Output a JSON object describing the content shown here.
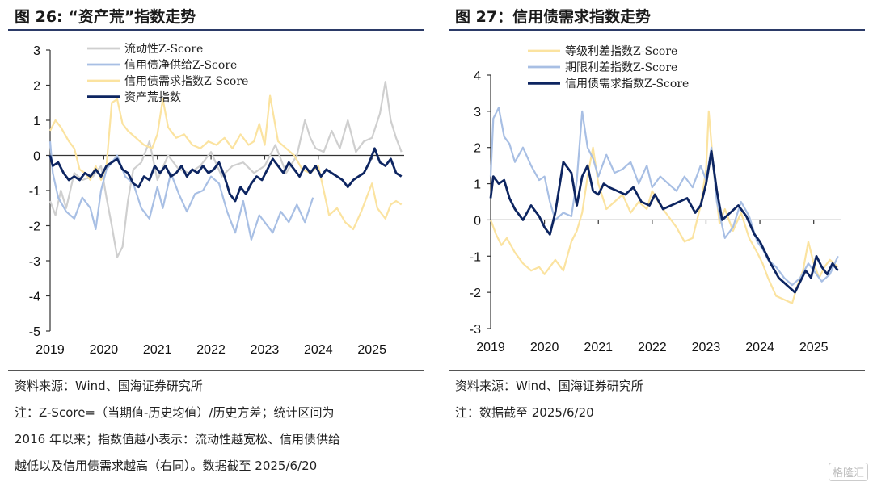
{
  "left": {
    "title": "图 26: “资产荒”指数走势",
    "source": "资料来源：Wind、国海证券研究所",
    "notes": [
      "注：Z-Score=（当期值-历史均值）/历史方差；统计区间为",
      "2016 年以来；指数值越小表示：流动性越宽松、信用债供给",
      "越低以及信用债需求越高（右同）。数据截至 2025/6/20"
    ]
  },
  "right": {
    "title": "图 27：信用债需求指数走势",
    "source": "资料来源：Wind、国海证券研究所",
    "notes": [
      "注：数据截至 2025/6/20"
    ]
  },
  "watermark": "格隆汇",
  "colors": {
    "axis": "#333333",
    "rule": "#2b3a67"
  },
  "chart_data": [
    {
      "type": "line",
      "title": "",
      "x_ticks": [
        "2019",
        "2020",
        "2021",
        "2022",
        "2023",
        "2024",
        "2025"
      ],
      "xlim": [
        2019.0,
        2025.6
      ],
      "ylim": [
        -5,
        3
      ],
      "y_ticks": [
        3,
        2,
        1,
        0,
        -1,
        -2,
        -3,
        -4,
        -5
      ],
      "grid": false,
      "legend": "top-left",
      "series": [
        {
          "name": "流动性Z-Score",
          "color": "#cfcfcf",
          "width": 2.2,
          "x": [
            2019.0,
            2019.1,
            2019.2,
            2019.3,
            2019.45,
            2019.6,
            2019.8,
            2019.95,
            2020.05,
            2020.15,
            2020.25,
            2020.35,
            2020.45,
            2020.55,
            2020.7,
            2020.85,
            2021.0,
            2021.2,
            2021.4,
            2021.6,
            2021.8,
            2022.0,
            2022.2,
            2022.4,
            2022.6,
            2022.8,
            2023.0,
            2023.2,
            2023.4,
            2023.6,
            2023.75,
            2023.85,
            2023.95,
            2024.1,
            2024.25,
            2024.4,
            2024.55,
            2024.7,
            2024.85,
            2025.0,
            2025.15,
            2025.25,
            2025.35,
            2025.45,
            2025.55
          ],
          "y": [
            -1.3,
            -1.7,
            -1.0,
            -1.5,
            -0.5,
            -0.7,
            -0.6,
            -0.3,
            -1.2,
            -2.0,
            -2.9,
            -2.6,
            -1.3,
            -0.4,
            -0.2,
            0.4,
            -0.7,
            0.0,
            -0.4,
            -0.5,
            -0.3,
            0.1,
            -0.6,
            -0.3,
            -0.2,
            -0.5,
            -0.3,
            0.3,
            -0.5,
            0.0,
            1.0,
            0.5,
            0.2,
            0.1,
            0.7,
            0.2,
            1.0,
            0.1,
            0.4,
            0.5,
            1.2,
            2.1,
            1.0,
            0.5,
            0.1
          ]
        },
        {
          "name": "信用债净供给Z-Score",
          "color": "#a8bfe4",
          "width": 2.2,
          "x": [
            2019.0,
            2019.05,
            2019.15,
            2019.3,
            2019.45,
            2019.6,
            2019.75,
            2019.85,
            2019.95,
            2020.05,
            2020.15,
            2020.25,
            2020.4,
            2020.55,
            2020.7,
            2020.85,
            2021.0,
            2021.1,
            2021.25,
            2021.4,
            2021.55,
            2021.7,
            2021.85,
            2022.0,
            2022.15,
            2022.3,
            2022.45,
            2022.6,
            2022.75,
            2022.9,
            2023.0,
            2023.15,
            2023.3,
            2023.45,
            2023.6,
            2023.75,
            2023.9
          ],
          "y": [
            0.4,
            -0.5,
            -1.2,
            -1.6,
            -1.8,
            -1.2,
            -1.5,
            -2.1,
            -1.0,
            -0.4,
            -0.2,
            0.0,
            -0.6,
            -0.8,
            -1.5,
            -1.8,
            -0.9,
            -1.5,
            -0.5,
            -1.1,
            -1.6,
            -1.1,
            -1.0,
            -0.6,
            -0.8,
            -1.6,
            -2.2,
            -1.3,
            -2.4,
            -1.7,
            -1.9,
            -2.2,
            -1.6,
            -1.9,
            -1.4,
            -1.9,
            -1.2
          ]
        },
        {
          "name": "信用债需求指数Z-Score",
          "color": "#fbe3a0",
          "width": 2.2,
          "x": [
            2019.0,
            2019.1,
            2019.2,
            2019.35,
            2019.45,
            2019.55,
            2019.65,
            2019.75,
            2019.85,
            2019.95,
            2020.05,
            2020.15,
            2020.25,
            2020.35,
            2020.45,
            2020.6,
            2020.75,
            2020.9,
            2021.0,
            2021.1,
            2021.2,
            2021.35,
            2021.5,
            2021.65,
            2021.8,
            2021.95,
            2022.1,
            2022.25,
            2022.4,
            2022.55,
            2022.7,
            2022.8,
            2022.9,
            2023.0,
            2023.1,
            2023.25,
            2023.4,
            2023.55,
            2023.7,
            2023.85,
            2024.0,
            2024.1,
            2024.2,
            2024.35,
            2024.5,
            2024.65,
            2024.8,
            2024.9,
            2025.0,
            2025.1,
            2025.25,
            2025.35,
            2025.45,
            2025.55
          ],
          "y": [
            0.7,
            1.0,
            0.8,
            0.4,
            0.2,
            -0.4,
            -0.5,
            -0.7,
            -0.3,
            -0.7,
            -0.3,
            1.5,
            1.6,
            0.9,
            0.7,
            0.5,
            0.3,
            0.2,
            0.6,
            1.6,
            0.8,
            0.5,
            0.6,
            0.3,
            0.2,
            0.4,
            0.3,
            0.5,
            0.2,
            0.6,
            0.3,
            0.4,
            0.9,
            0.3,
            1.7,
            0.4,
            0.2,
            0.0,
            -0.4,
            -0.5,
            -0.3,
            -1.0,
            -1.7,
            -1.5,
            -1.9,
            -2.1,
            -1.6,
            -1.2,
            -0.8,
            -1.5,
            -1.8,
            -1.4,
            -1.3,
            -1.4
          ]
        },
        {
          "name": "资产荒指数",
          "color": "#0d2561",
          "width": 2.8,
          "x": [
            2019.0,
            2019.05,
            2019.15,
            2019.25,
            2019.35,
            2019.45,
            2019.55,
            2019.65,
            2019.75,
            2019.85,
            2019.95,
            2020.05,
            2020.15,
            2020.25,
            2020.35,
            2020.45,
            2020.55,
            2020.65,
            2020.75,
            2020.85,
            2020.95,
            2021.05,
            2021.15,
            2021.25,
            2021.35,
            2021.45,
            2021.55,
            2021.65,
            2021.75,
            2021.85,
            2021.95,
            2022.05,
            2022.15,
            2022.25,
            2022.35,
            2022.45,
            2022.55,
            2022.65,
            2022.75,
            2022.85,
            2022.95,
            2023.05,
            2023.15,
            2023.25,
            2023.35,
            2023.45,
            2023.55,
            2023.65,
            2023.75,
            2023.85,
            2023.95,
            2024.05,
            2024.15,
            2024.25,
            2024.35,
            2024.45,
            2024.55,
            2024.65,
            2024.75,
            2024.85,
            2024.95,
            2025.05,
            2025.15,
            2025.25,
            2025.35,
            2025.45,
            2025.55
          ],
          "y": [
            0.0,
            -0.3,
            -0.2,
            -0.5,
            -0.7,
            -0.6,
            -0.7,
            -0.5,
            -0.6,
            -0.4,
            -0.6,
            -0.3,
            -0.2,
            -0.1,
            -0.4,
            -0.5,
            -0.8,
            -0.9,
            -0.6,
            -0.7,
            -0.3,
            -0.5,
            -0.3,
            -0.6,
            -0.5,
            -0.3,
            -0.6,
            -0.4,
            -0.5,
            -0.3,
            -0.5,
            -0.4,
            -0.2,
            -0.6,
            -1.1,
            -1.3,
            -0.9,
            -1.1,
            -0.8,
            -0.6,
            -0.7,
            -0.4,
            -0.1,
            -0.3,
            -0.5,
            -0.2,
            -0.4,
            -0.6,
            -0.3,
            -0.5,
            -0.3,
            -0.6,
            -0.4,
            -0.5,
            -0.6,
            -0.7,
            -0.9,
            -0.7,
            -0.6,
            -0.5,
            -0.2,
            0.2,
            -0.2,
            -0.3,
            -0.1,
            -0.5,
            -0.6
          ]
        }
      ]
    },
    {
      "type": "line",
      "title": "",
      "x_ticks": [
        "2019",
        "2020",
        "2021",
        "2022",
        "2023",
        "2024",
        "2025"
      ],
      "xlim": [
        2019.0,
        2025.5
      ],
      "ylim": [
        -3,
        4
      ],
      "y_ticks": [
        4,
        3,
        2,
        1,
        0,
        -1,
        -2,
        -3
      ],
      "grid": false,
      "legend": "top-center",
      "series": [
        {
          "name": "等级利差指数Z-Score",
          "color": "#fbe3a0",
          "width": 2.2,
          "x": [
            2019.0,
            2019.1,
            2019.2,
            2019.3,
            2019.45,
            2019.6,
            2019.75,
            2019.9,
            2020.0,
            2020.1,
            2020.2,
            2020.35,
            2020.5,
            2020.6,
            2020.7,
            2020.8,
            2020.9,
            2021.0,
            2021.15,
            2021.3,
            2021.45,
            2021.6,
            2021.75,
            2021.9,
            2022.0,
            2022.15,
            2022.3,
            2022.45,
            2022.6,
            2022.75,
            2022.9,
            2023.0,
            2023.05,
            2023.15,
            2023.25,
            2023.35,
            2023.5,
            2023.65,
            2023.8,
            2023.95,
            2024.05,
            2024.15,
            2024.3,
            2024.45,
            2024.6,
            2024.7,
            2024.8,
            2024.9,
            2025.0,
            2025.1,
            2025.2,
            2025.3,
            2025.45
          ],
          "y": [
            0.0,
            -0.4,
            -0.7,
            -0.5,
            -0.9,
            -1.2,
            -1.4,
            -1.3,
            -1.5,
            -1.3,
            -1.1,
            -1.4,
            -0.6,
            -0.3,
            0.2,
            1.2,
            2.0,
            1.0,
            0.3,
            0.5,
            0.7,
            0.2,
            0.5,
            0.3,
            0.8,
            0.4,
            0.1,
            -0.2,
            -0.6,
            -0.5,
            0.4,
            1.4,
            3.0,
            1.2,
            -0.1,
            0.3,
            -0.3,
            0.2,
            -0.5,
            -0.9,
            -1.2,
            -1.6,
            -2.1,
            -2.2,
            -2.3,
            -1.8,
            -1.4,
            -0.6,
            -1.2,
            -1.6,
            -1.3,
            -1.1,
            -1.3
          ]
        },
        {
          "name": "期限利差指数Z-Score",
          "color": "#a8bfe4",
          "width": 2.2,
          "x": [
            2019.0,
            2019.05,
            2019.15,
            2019.25,
            2019.35,
            2019.45,
            2019.6,
            2019.75,
            2019.9,
            2020.0,
            2020.1,
            2020.2,
            2020.35,
            2020.5,
            2020.6,
            2020.7,
            2020.8,
            2020.9,
            2021.0,
            2021.15,
            2021.3,
            2021.45,
            2021.6,
            2021.75,
            2021.9,
            2022.0,
            2022.15,
            2022.3,
            2022.45,
            2022.6,
            2022.75,
            2022.9,
            2023.0,
            2023.1,
            2023.2,
            2023.35,
            2023.5,
            2023.65,
            2023.8,
            2023.95,
            2024.05,
            2024.15,
            2024.3,
            2024.45,
            2024.6,
            2024.75,
            2024.9,
            2025.0,
            2025.15,
            2025.3,
            2025.45
          ],
          "y": [
            1.2,
            2.8,
            3.1,
            2.3,
            2.1,
            1.6,
            2.0,
            1.5,
            1.1,
            1.2,
            0.5,
            0.0,
            0.2,
            0.1,
            1.1,
            3.0,
            2.0,
            1.7,
            1.2,
            1.8,
            1.3,
            1.4,
            1.6,
            1.0,
            1.5,
            0.9,
            1.2,
            1.0,
            0.8,
            1.2,
            0.9,
            1.5,
            1.1,
            2.0,
            0.5,
            -0.5,
            -0.2,
            0.5,
            0.1,
            -0.6,
            -0.8,
            -1.1,
            -1.3,
            -1.6,
            -1.8,
            -1.6,
            -1.2,
            -1.4,
            -1.7,
            -1.5,
            -1.0
          ]
        },
        {
          "name": "信用债需求指数Z-Score",
          "color": "#0d2561",
          "width": 2.8,
          "x": [
            2019.0,
            2019.05,
            2019.15,
            2019.25,
            2019.35,
            2019.45,
            2019.6,
            2019.75,
            2019.9,
            2020.0,
            2020.1,
            2020.2,
            2020.35,
            2020.5,
            2020.6,
            2020.7,
            2020.8,
            2020.9,
            2021.0,
            2021.1,
            2021.2,
            2021.35,
            2021.5,
            2021.65,
            2021.8,
            2021.95,
            2022.05,
            2022.2,
            2022.35,
            2022.5,
            2022.65,
            2022.8,
            2022.9,
            2023.0,
            2023.1,
            2023.2,
            2023.3,
            2023.45,
            2023.6,
            2023.75,
            2023.9,
            2024.0,
            2024.1,
            2024.2,
            2024.35,
            2024.5,
            2024.65,
            2024.75,
            2024.85,
            2024.95,
            2025.05,
            2025.15,
            2025.25,
            2025.35,
            2025.45
          ],
          "y": [
            0.6,
            1.2,
            1.0,
            1.1,
            0.6,
            0.3,
            0.0,
            0.4,
            0.1,
            -0.2,
            -0.4,
            0.2,
            1.6,
            1.3,
            0.4,
            1.2,
            1.5,
            0.8,
            0.7,
            1.0,
            0.9,
            0.8,
            0.7,
            0.9,
            0.5,
            0.4,
            0.7,
            0.3,
            0.4,
            0.5,
            0.6,
            0.2,
            0.4,
            1.0,
            1.9,
            0.8,
            0.0,
            0.2,
            0.4,
            0.1,
            -0.4,
            -0.6,
            -0.9,
            -1.2,
            -1.6,
            -1.8,
            -2.0,
            -1.7,
            -1.4,
            -1.6,
            -1.0,
            -1.3,
            -1.5,
            -1.2,
            -1.4
          ]
        }
      ]
    }
  ]
}
